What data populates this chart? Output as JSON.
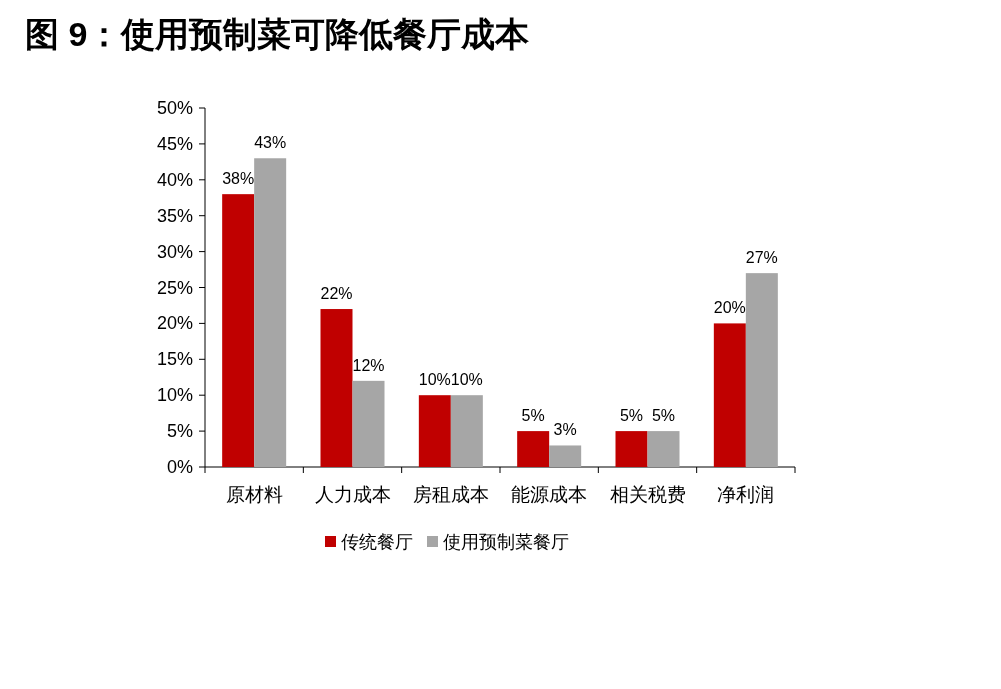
{
  "chart_data": {
    "type": "bar",
    "title": "图 9：使用预制菜可降低餐厅成本",
    "categories": [
      "原材料",
      "人力成本",
      "房租成本",
      "能源成本",
      "相关税费",
      "净利润"
    ],
    "series": [
      {
        "name": "传统餐厅",
        "color": "#c00000",
        "values": [
          38,
          22,
          10,
          5,
          5,
          20
        ],
        "value_labels": [
          "38%",
          "22%",
          "10%",
          "5%",
          "5%",
          "20%"
        ]
      },
      {
        "name": "使用预制菜餐厅",
        "color": "#a6a6a6",
        "values": [
          43,
          12,
          10,
          3,
          5,
          27
        ],
        "value_labels": [
          "43%",
          "12%",
          "10%",
          "3%",
          "5%",
          "27%"
        ]
      }
    ],
    "ylim": [
      0,
      50
    ],
    "yticks": [
      {
        "value": 0,
        "label": "0%"
      },
      {
        "value": 5,
        "label": "5%"
      },
      {
        "value": 10,
        "label": "10%"
      },
      {
        "value": 15,
        "label": "15%"
      },
      {
        "value": 20,
        "label": "20%"
      },
      {
        "value": 25,
        "label": "25%"
      },
      {
        "value": 30,
        "label": "30%"
      },
      {
        "value": 35,
        "label": "35%"
      },
      {
        "value": 40,
        "label": "40%"
      },
      {
        "value": 45,
        "label": "45%"
      },
      {
        "value": 50,
        "label": "50%"
      }
    ],
    "legend": "bottom",
    "grid": false
  }
}
